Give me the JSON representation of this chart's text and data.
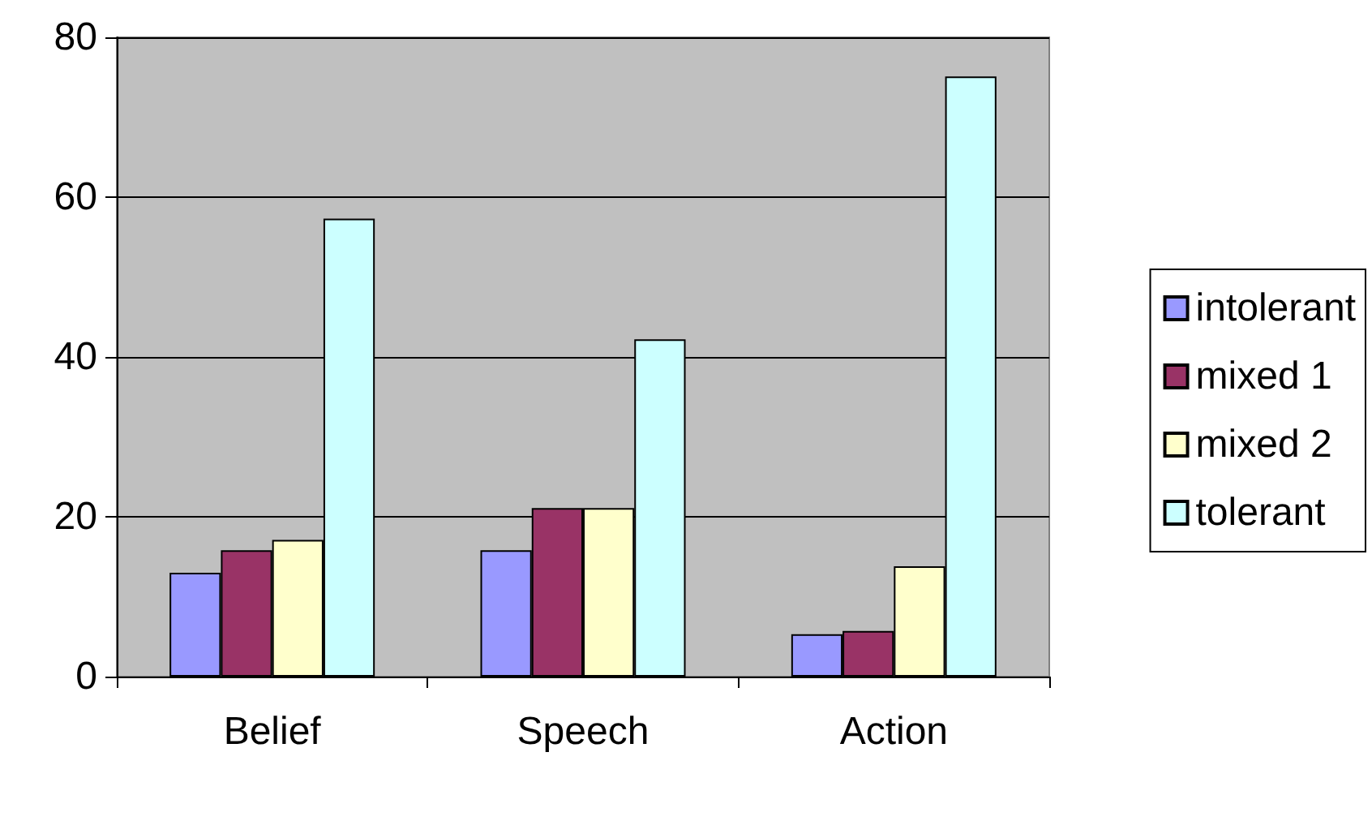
{
  "chart_data": {
    "type": "bar",
    "categories": [
      "Belief",
      "Speech",
      "Action"
    ],
    "series": [
      {
        "name": "intolerant",
        "color": "#9999ff",
        "values": [
          13,
          15.8,
          5.3
        ]
      },
      {
        "name": "mixed 1",
        "color": "#993366",
        "values": [
          15.8,
          21.1,
          5.7
        ]
      },
      {
        "name": "mixed 2",
        "color": "#ffffcc",
        "values": [
          17.1,
          21.1,
          13.8
        ]
      },
      {
        "name": "tolerant",
        "color": "#ccffff",
        "values": [
          57.3,
          42.2,
          75.1
        ]
      }
    ],
    "ylim": [
      0,
      80
    ],
    "yticks": [
      0,
      20,
      40,
      60,
      80
    ],
    "grid": "y",
    "legend": "right"
  }
}
